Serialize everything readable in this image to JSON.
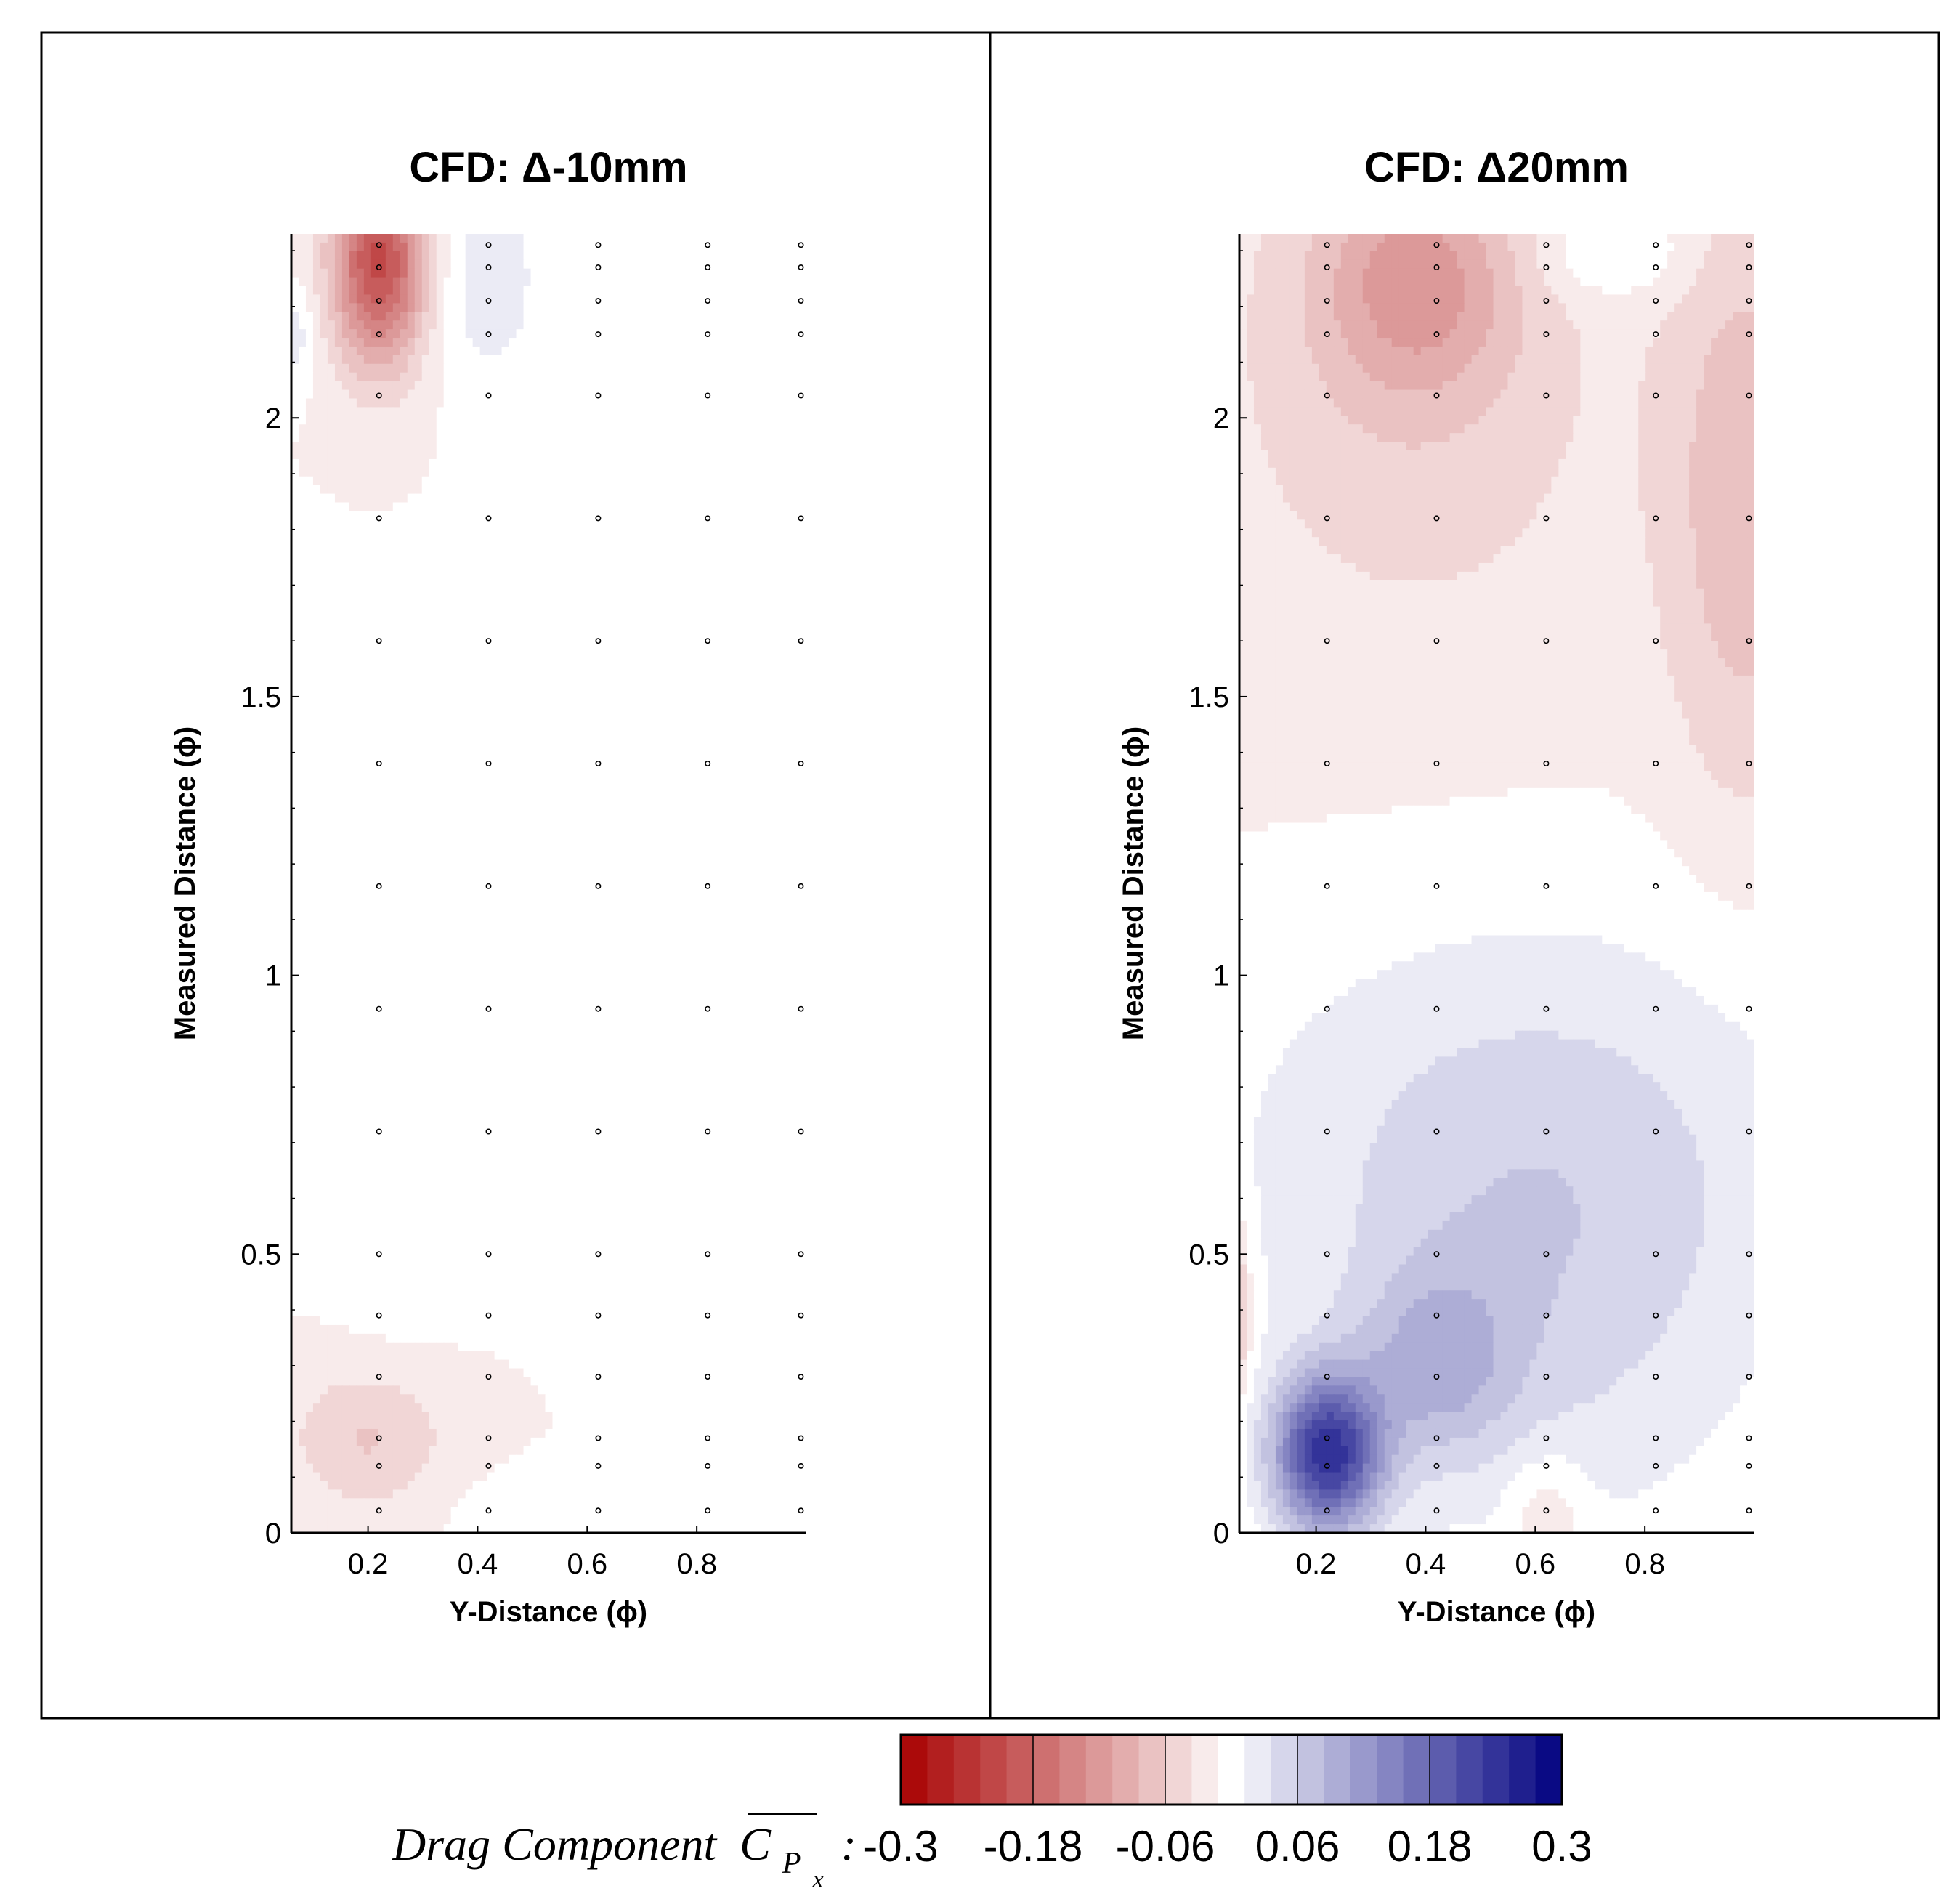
{
  "chart_data": [
    {
      "type": "heatmap",
      "title": "CFD: Δ-10mm",
      "xlabel": "Y-Distance (ϕ)",
      "ylabel": "Measured Distance (ϕ)",
      "xlim": [
        0.06,
        1.0
      ],
      "ylim": [
        0,
        2.33
      ],
      "xticks": [
        0.2,
        0.4,
        0.6,
        0.8
      ],
      "yticks": [
        0,
        0.5,
        1,
        1.5,
        2
      ],
      "xtick_labels": [
        "0.2",
        "0.4",
        "0.6",
        "0.8"
      ],
      "ytick_labels": [
        "0",
        "0.5",
        "1",
        "1.5",
        "2"
      ],
      "measurement_x": [
        0.22,
        0.42,
        0.62,
        0.82,
        0.99
      ],
      "measurement_y": [
        0.04,
        0.12,
        0.17,
        0.28,
        0.39,
        0.5,
        0.72,
        0.94,
        1.16,
        1.38,
        1.6,
        1.82,
        2.04,
        2.15,
        2.21,
        2.27,
        2.31
      ],
      "features": [
        {
          "x": 0.22,
          "y": 2.28,
          "sx": 0.06,
          "sy": 0.13,
          "value": -0.2
        },
        {
          "x": 0.42,
          "y": 2.25,
          "sx": 0.07,
          "sy": 0.14,
          "value": 0.04
        },
        {
          "x": 0.2,
          "y": 0.17,
          "sx": 0.1,
          "sy": 0.09,
          "value": -0.05
        },
        {
          "x": 0.06,
          "y": 2.15,
          "sx": 0.03,
          "sy": 0.06,
          "value": 0.04
        },
        {
          "x": 0.4,
          "y": 1.1,
          "sx": 0.25,
          "sy": 0.3,
          "value": 0.015
        },
        {
          "x": 0.25,
          "y": 0.55,
          "sx": 0.08,
          "sy": 0.15,
          "value": 0.015
        },
        {
          "x": 0.5,
          "y": 0.03,
          "sx": 0.1,
          "sy": 0.05,
          "value": 0.015
        }
      ],
      "background_value": -0.012
    },
    {
      "type": "heatmap",
      "title": "CFD: Δ20mm",
      "xlabel": "Y-Distance (ϕ)",
      "ylabel": "Measured Distance (ϕ)",
      "xlim": [
        0.06,
        1.0
      ],
      "ylim": [
        0,
        2.33
      ],
      "xticks": [
        0.2,
        0.4,
        0.6,
        0.8
      ],
      "yticks": [
        0,
        0.5,
        1,
        1.5,
        2
      ],
      "xtick_labels": [
        "0.2",
        "0.4",
        "0.6",
        "0.8"
      ],
      "ytick_labels": [
        "0",
        "0.5",
        "1",
        "1.5",
        "2"
      ],
      "measurement_x": [
        0.22,
        0.42,
        0.62,
        0.82,
        0.99
      ],
      "measurement_y": [
        0.04,
        0.12,
        0.17,
        0.28,
        0.39,
        0.5,
        0.72,
        0.94,
        1.16,
        1.38,
        1.6,
        1.82,
        2.04,
        2.15,
        2.21,
        2.27,
        2.31
      ],
      "features": [
        {
          "x": 0.22,
          "y": 0.14,
          "sx": 0.07,
          "sy": 0.1,
          "value": 0.24
        },
        {
          "x": 0.42,
          "y": 0.3,
          "sx": 0.1,
          "sy": 0.12,
          "value": 0.07
        },
        {
          "x": 0.6,
          "y": 0.45,
          "sx": 0.3,
          "sy": 0.35,
          "value": 0.055
        },
        {
          "x": 0.6,
          "y": 0.75,
          "sx": 0.5,
          "sy": 0.3,
          "value": 0.03
        },
        {
          "x": 0.38,
          "y": 2.25,
          "sx": 0.13,
          "sy": 0.16,
          "value": -0.09
        },
        {
          "x": 0.38,
          "y": 2.0,
          "sx": 0.3,
          "sy": 0.35,
          "value": -0.03
        },
        {
          "x": 0.98,
          "y": 1.85,
          "sx": 0.1,
          "sy": 0.4,
          "value": -0.06
        },
        {
          "x": 0.74,
          "y": 2.3,
          "sx": 0.1,
          "sy": 0.06,
          "value": 0.04
        },
        {
          "x": 0.62,
          "y": 0.03,
          "sx": 0.05,
          "sy": 0.08,
          "value": -0.04
        },
        {
          "x": 0.06,
          "y": 0.4,
          "sx": 0.015,
          "sy": 0.12,
          "value": -0.06
        }
      ],
      "background_value": -0.015
    }
  ],
  "colorbar": {
    "title": "Drag Component",
    "symbol": "C",
    "subscript": "P",
    "subsubscript": "x",
    "colon": ":",
    "range": [
      -0.3,
      0.3
    ],
    "levels": 25,
    "ticks": [
      -0.3,
      -0.18,
      -0.06,
      0.06,
      0.18,
      0.3
    ],
    "tick_labels": [
      "-0.3",
      "-0.18",
      "-0.06",
      "0.06",
      "0.18",
      "0.3"
    ],
    "colors": {
      "negative": "#a80000",
      "neutral": "#ffffff",
      "positive": "#00007f"
    }
  }
}
